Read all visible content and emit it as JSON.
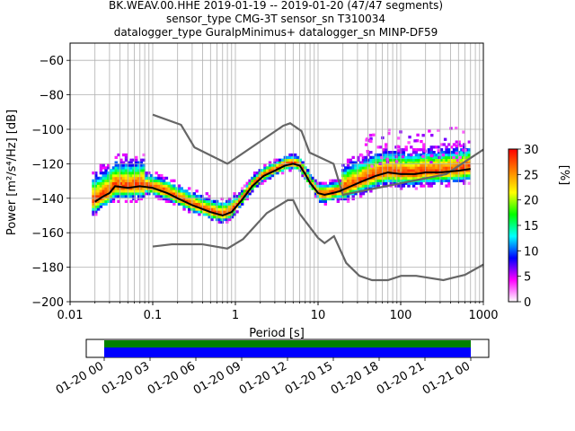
{
  "chart_data": {
    "type": "heatmap",
    "title_lines": [
      "BK.WEAV.00.HHE   2019-01-19 -- 2019-01-20  (47/47 segments)",
      "sensor_type CMG-3T sensor_sn T310034",
      "datalogger_type GuralpMinimus+ datalogger_sn MINP-DF59"
    ],
    "xlabel": "Period [s]",
    "ylabel": "Power [m²/s⁴/Hz] [dB]",
    "x_scale": "log",
    "xlim": [
      0.01,
      1000
    ],
    "ylim": [
      -200,
      -50
    ],
    "x_tick_labels": [
      "0.01",
      "0.1",
      "1",
      "10",
      "100",
      "1000"
    ],
    "y_tick_labels": [
      "−200",
      "−180",
      "−160",
      "−140",
      "−120",
      "−100",
      "−80",
      "−60"
    ],
    "grid": true,
    "colorbar": {
      "label": "[%]",
      "range": [
        0,
        30
      ],
      "tick_labels": [
        "0",
        "5",
        "10",
        "15",
        "20",
        "25",
        "30"
      ],
      "colormap": [
        "#ffffff",
        "#ff00ff",
        "#0000ff",
        "#00ffff",
        "#00ff00",
        "#ffff00",
        "#ff8000",
        "#ff0000"
      ]
    },
    "mode_line": {
      "color": "#000000",
      "points": [
        [
          0.02,
          -142
        ],
        [
          0.025,
          -139
        ],
        [
          0.03,
          -137
        ],
        [
          0.035,
          -133
        ],
        [
          0.05,
          -134
        ],
        [
          0.07,
          -133
        ],
        [
          0.1,
          -134
        ],
        [
          0.15,
          -137
        ],
        [
          0.2,
          -140
        ],
        [
          0.3,
          -144
        ],
        [
          0.5,
          -148
        ],
        [
          0.7,
          -150
        ],
        [
          0.9,
          -148
        ],
        [
          1.2,
          -141
        ],
        [
          1.6,
          -133
        ],
        [
          2.2,
          -127
        ],
        [
          3,
          -124
        ],
        [
          4,
          -121
        ],
        [
          5,
          -120
        ],
        [
          6,
          -121
        ],
        [
          7,
          -126
        ],
        [
          8,
          -131
        ],
        [
          10,
          -137
        ],
        [
          12,
          -138
        ],
        [
          15,
          -137
        ],
        [
          18,
          -136
        ],
        [
          25,
          -133
        ],
        [
          35,
          -130
        ],
        [
          50,
          -127
        ],
        [
          70,
          -125
        ],
        [
          100,
          -126
        ],
        [
          150,
          -126
        ],
        [
          200,
          -125
        ],
        [
          300,
          -125
        ],
        [
          500,
          -124
        ],
        [
          700,
          -123
        ]
      ]
    },
    "noise_models": [
      {
        "name": "",
        "color": "#666666",
        "points": [
          [
            0.1,
            -91.5
          ],
          [
            0.22,
            -97.4
          ],
          [
            0.32,
            -110.5
          ],
          [
            0.8,
            -120
          ],
          [
            3.8,
            -97.9
          ],
          [
            4.6,
            -96.5
          ],
          [
            6.3,
            -101
          ],
          [
            7.9,
            -113.5
          ],
          [
            15.4,
            -120
          ],
          [
            20,
            -138
          ],
          [
            354.8,
            -126
          ],
          [
            10000,
            -80
          ]
        ]
      },
      {
        "name": "",
        "color": "#666666",
        "points": [
          [
            0.1,
            -168
          ],
          [
            0.17,
            -166.7
          ],
          [
            0.4,
            -166.7
          ],
          [
            0.8,
            -169.2
          ],
          [
            1.24,
            -163.7
          ],
          [
            2.4,
            -148.6
          ],
          [
            4.3,
            -141.1
          ],
          [
            5,
            -141.1
          ],
          [
            6,
            -149
          ],
          [
            10,
            -163
          ],
          [
            12,
            -166
          ],
          [
            15.6,
            -162
          ],
          [
            21.9,
            -177.5
          ],
          [
            31.6,
            -185
          ],
          [
            45,
            -187.5
          ],
          [
            70,
            -187.5
          ],
          [
            101,
            -185
          ],
          [
            154,
            -185
          ],
          [
            328,
            -187.5
          ],
          [
            600,
            -184.4
          ],
          [
            10000,
            -151.5
          ]
        ]
      }
    ],
    "data_availability": {
      "tick_labels": [
        "01-20 00",
        "01-20 03",
        "01-20 06",
        "01-20 09",
        "01-20 12",
        "01-20 15",
        "01-20 18",
        "01-20 21",
        "01-21 00"
      ],
      "bands": [
        {
          "color": "#008000"
        },
        {
          "color": "#0000ff"
        }
      ]
    }
  }
}
